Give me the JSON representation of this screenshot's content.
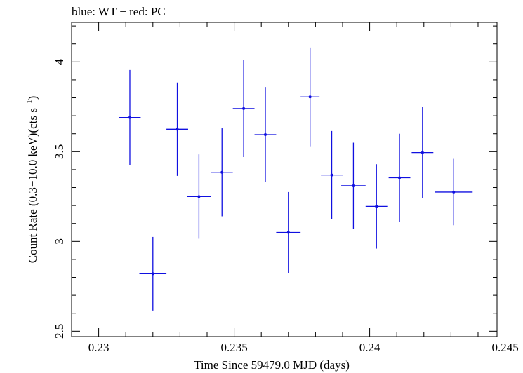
{
  "chart_data": {
    "type": "scatter",
    "title": "blue: WT − red: PC",
    "xlabel": "Time Since 59479.0 MJD (days)",
    "ylabel_main": "Count Rate (0.3−10.0 keV)(cts s",
    "ylabel_sup": "−1",
    "ylabel_close": ")",
    "xlim": [
      0.229,
      0.2447
    ],
    "ylim": [
      2.47,
      4.22
    ],
    "xticks": [
      0.23,
      0.235,
      0.24,
      0.245
    ],
    "xtick_labels": [
      "0.23",
      "0.235",
      "0.24",
      "0.245"
    ],
    "yticks": [
      2.5,
      3,
      3.5,
      4
    ],
    "ytick_labels": [
      "2.5",
      "3",
      "3.5",
      "4"
    ],
    "series": [
      {
        "color": "#1010e0",
        "points": [
          {
            "x": 0.23115,
            "xerr": 0.0004,
            "y": 3.69,
            "yerr": 0.265
          },
          {
            "x": 0.232,
            "xerr": 0.0005,
            "y": 2.82,
            "yerr": 0.205
          },
          {
            "x": 0.2329,
            "xerr": 0.0004,
            "y": 3.625,
            "yerr": 0.26
          },
          {
            "x": 0.2337,
            "xerr": 0.00045,
            "y": 3.25,
            "yerr": 0.235
          },
          {
            "x": 0.23455,
            "xerr": 0.0004,
            "y": 3.385,
            "yerr": 0.245
          },
          {
            "x": 0.23535,
            "xerr": 0.0004,
            "y": 3.74,
            "yerr": 0.27
          },
          {
            "x": 0.23615,
            "xerr": 0.0004,
            "y": 3.595,
            "yerr": 0.265
          },
          {
            "x": 0.237,
            "xerr": 0.00045,
            "y": 3.05,
            "yerr": 0.225
          },
          {
            "x": 0.2378,
            "xerr": 0.00035,
            "y": 3.805,
            "yerr": 0.275
          },
          {
            "x": 0.2386,
            "xerr": 0.0004,
            "y": 3.37,
            "yerr": 0.245
          },
          {
            "x": 0.2394,
            "xerr": 0.00045,
            "y": 3.31,
            "yerr": 0.24
          },
          {
            "x": 0.24025,
            "xerr": 0.0004,
            "y": 3.195,
            "yerr": 0.235
          },
          {
            "x": 0.2411,
            "xerr": 0.0004,
            "y": 3.355,
            "yerr": 0.245
          },
          {
            "x": 0.24195,
            "xerr": 0.0004,
            "y": 3.495,
            "yerr": 0.255
          },
          {
            "x": 0.2431,
            "xerr": 0.0007,
            "y": 3.275,
            "yerr": 0.185
          }
        ]
      }
    ]
  }
}
